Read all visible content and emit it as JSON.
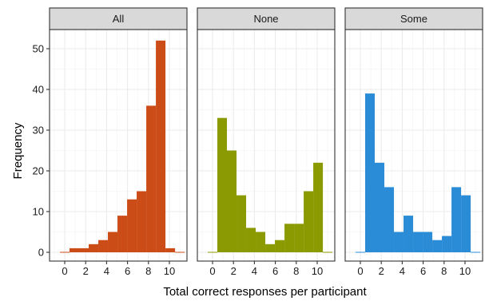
{
  "chart_data": {
    "type": "bar",
    "xlabel": "Total correct responses per participant",
    "ylabel": "Frequency",
    "xlim": [
      -1.1,
      11.9
    ],
    "ylim": [
      -2.6,
      54.6
    ],
    "xticks": [
      0,
      2,
      4,
      6,
      8,
      10
    ],
    "yticks": [
      0,
      10,
      20,
      30,
      40,
      50
    ],
    "grid": true,
    "bin_width": 0.917,
    "bin_centers": [
      0.0,
      0.917,
      1.833,
      2.75,
      3.667,
      4.583,
      5.5,
      6.417,
      7.333,
      8.25,
      9.167,
      10.083,
      11.0
    ],
    "panels": [
      {
        "name": "All",
        "color": "#CC4C17",
        "values": [
          0,
          1,
          1,
          2,
          3,
          5,
          9,
          13,
          15,
          36,
          52,
          1,
          0
        ]
      },
      {
        "name": "None",
        "color": "#8A9A00",
        "values": [
          0,
          33,
          25,
          14,
          6,
          5,
          2,
          3,
          7,
          7,
          15,
          22,
          0
        ]
      },
      {
        "name": "Some",
        "color": "#2A8BD7",
        "values": [
          0,
          39,
          22,
          16,
          5,
          9,
          5,
          5,
          3,
          4,
          16,
          14,
          0
        ]
      }
    ]
  }
}
